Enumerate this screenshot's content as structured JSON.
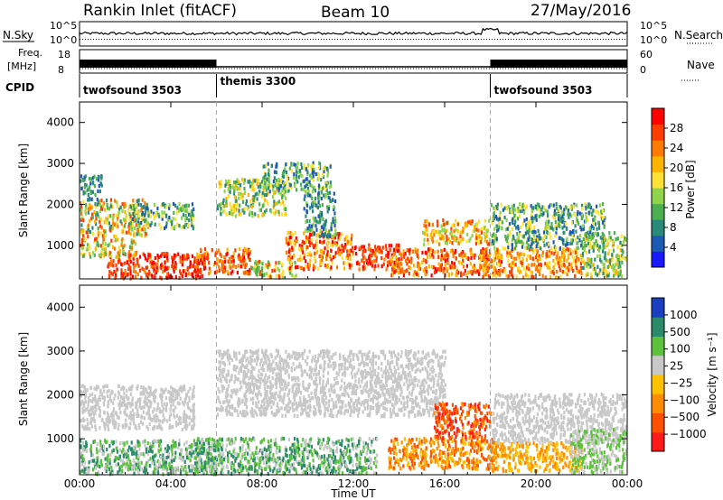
{
  "header": {
    "station": "Rankin Inlet (fitACF)",
    "beam": "Beam 10",
    "date": "27/May/2016"
  },
  "nsky_panel": {
    "label": "N.Sky",
    "right_label": "N.Search",
    "left_ticks": [
      "10^5",
      "10^0"
    ],
    "right_ticks": [
      "10^5",
      "10^0"
    ]
  },
  "freq_panel": {
    "label_line1": "Freq.",
    "label_line2": "[MHz]",
    "left_ticks": [
      "18",
      "8"
    ],
    "right_ticks": [
      "60",
      "0"
    ],
    "right_label": "Nave"
  },
  "cpid": {
    "label": "CPID",
    "segments": [
      {
        "start_hour": 0,
        "end_hour": 6,
        "text": "twofsound 3503"
      },
      {
        "start_hour": 6,
        "end_hour": 18,
        "text": "themis 3300"
      },
      {
        "start_hour": 18,
        "end_hour": 24,
        "text": "twofsound 3503"
      }
    ]
  },
  "power_panel": {
    "ylabel": "Slant Range [km]",
    "yticks": [
      1000,
      2000,
      3000,
      4000
    ],
    "colorbar_label": "Power [dB]",
    "colorbar_ticks": [
      "28",
      "24",
      "20",
      "16",
      "12",
      "8",
      "4"
    ],
    "colors": [
      "#1a1aff",
      "#1d5ab4",
      "#2a8a7a",
      "#4caf50",
      "#8fd44a",
      "#ffe135",
      "#ffb400",
      "#ff7a00",
      "#ff3d00",
      "#ff0000"
    ]
  },
  "velocity_panel": {
    "ylabel": "Slant Range [km]",
    "yticks": [
      1000,
      2000,
      3000,
      4000
    ],
    "colorbar_label": "Velocity [m s⁻¹]",
    "colorbar_ticks": [
      "1000",
      "500",
      "100",
      "25",
      "−25",
      "−100",
      "−500",
      "−1000"
    ],
    "colors": [
      "#1a3fc0",
      "#2a8a6a",
      "#5cc23c",
      "#c8c8c8",
      "#ffc000",
      "#ff8c00",
      "#ff5000",
      "#ff1a1a"
    ]
  },
  "x_axis": {
    "title": "Time UT",
    "ticks": [
      "00:00",
      "04:00",
      "08:00",
      "12:00",
      "16:00",
      "20:00",
      "00:00"
    ]
  },
  "chart_data": [
    {
      "type": "heatmap",
      "title": "Power",
      "xlabel": "Time UT",
      "ylabel": "Slant Range [km]",
      "xlim": [
        0,
        24
      ],
      "ylim": [
        180,
        4500
      ],
      "colorbar": "Power [dB]",
      "colorbar_range": [
        0,
        30
      ]
    },
    {
      "type": "heatmap",
      "title": "Velocity",
      "xlabel": "Time UT",
      "ylabel": "Slant Range [km]",
      "xlim": [
        0,
        24
      ],
      "ylim": [
        180,
        4500
      ],
      "colorbar": "Velocity [m s⁻¹]",
      "colorbar_range": [
        -1000,
        1000
      ]
    }
  ]
}
